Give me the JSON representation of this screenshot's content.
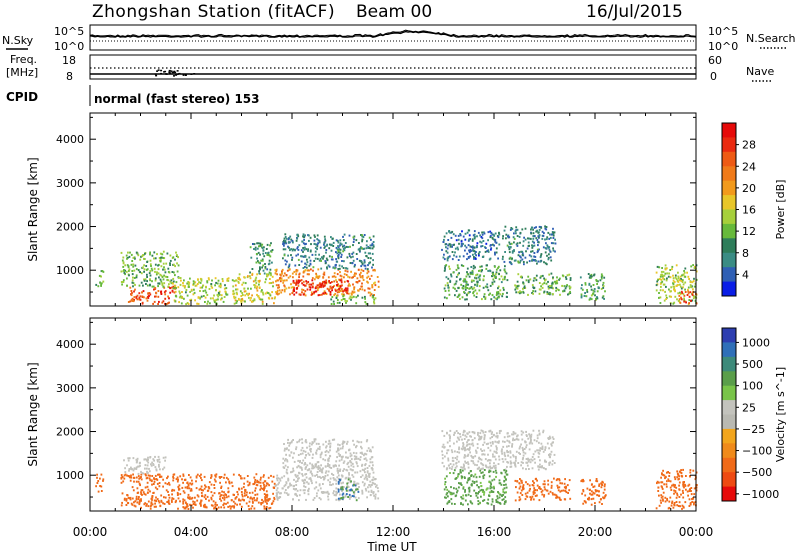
{
  "header": {
    "station": "Zhongshan Station (fitACF)",
    "beam": "Beam 00",
    "date": "16/Jul/2015",
    "mode": "normal (fast stereo) 153"
  },
  "panel_labels": {
    "nsky": "N.Sky",
    "nsearch": "N.Search",
    "freq_line1": "Freq.",
    "freq_line2": "[MHz]",
    "cpid": "CPID",
    "nave": "Nave"
  },
  "noise_axis": {
    "left_top": "10^5",
    "left_bottom": "10^0",
    "right_top": "10^5",
    "right_bottom": "10^0"
  },
  "freq_axis": {
    "left_ticks": [
      "18",
      "8"
    ],
    "right_ticks": [
      "60",
      "0"
    ]
  },
  "colors": {
    "power_scale": [
      "#0a1ee6",
      "#2f5fb4",
      "#3a8c84",
      "#2e7d5a",
      "#67b93b",
      "#a6cf3b",
      "#e8c629",
      "#f29a1c",
      "#f07a19",
      "#ee5a14",
      "#ea2a10",
      "#e60a0a"
    ],
    "velocity_scale": [
      "#2d3eb0",
      "#2f6fb8",
      "#3d8a7a",
      "#5a9e4a",
      "#79c449",
      "#c3c3bd",
      "#b9b9b2",
      "#f2a51c",
      "#ef8a1a",
      "#f06a18",
      "#ee4a12",
      "#e60a0a"
    ]
  },
  "chart_data": [
    {
      "type": "heatmap",
      "title": "",
      "xlabel": "Time UT",
      "ylabel": "Slant Range [km]",
      "xlim": [
        "00:00",
        "24:00"
      ],
      "ylim": [
        180,
        4600
      ],
      "x_ticks": [
        "00:00",
        "04:00",
        "08:00",
        "12:00",
        "16:00",
        "20:00",
        "00:00"
      ],
      "y_ticks": [
        "1000",
        "2000",
        "3000",
        "4000"
      ],
      "colorbar": {
        "label": "Power [dB]",
        "range": [
          0,
          32
        ],
        "ticks": [
          "4",
          "8",
          "12",
          "16",
          "20",
          "24",
          "28"
        ]
      },
      "patches": [
        {
          "t0": 0.2,
          "t1": 0.5,
          "r0": 600,
          "r1": 1000,
          "v": 10
        },
        {
          "t0": 1.5,
          "t1": 3.4,
          "r0": 200,
          "r1": 600,
          "v": 26
        },
        {
          "t0": 1.2,
          "t1": 3.5,
          "r0": 600,
          "r1": 1400,
          "v": 12
        },
        {
          "t0": 3.2,
          "t1": 5.5,
          "r0": 200,
          "r1": 800,
          "v": 14
        },
        {
          "t0": 5.6,
          "t1": 7.3,
          "r0": 200,
          "r1": 900,
          "v": 16
        },
        {
          "t0": 6.3,
          "t1": 7.2,
          "r0": 900,
          "r1": 1600,
          "v": 9
        },
        {
          "t0": 7.3,
          "t1": 11.4,
          "r0": 400,
          "r1": 1000,
          "v": 22
        },
        {
          "t0": 8.0,
          "t1": 10.2,
          "r0": 400,
          "r1": 750,
          "v": 29
        },
        {
          "t0": 7.6,
          "t1": 11.2,
          "r0": 1000,
          "r1": 1800,
          "v": 7
        },
        {
          "t0": 9.5,
          "t1": 11.3,
          "r0": 200,
          "r1": 400,
          "v": 12
        },
        {
          "t0": 13.9,
          "t1": 16.2,
          "r0": 1200,
          "r1": 1900,
          "v": 6
        },
        {
          "t0": 16.3,
          "t1": 18.4,
          "r0": 1100,
          "r1": 2000,
          "v": 7
        },
        {
          "t0": 14.0,
          "t1": 16.5,
          "r0": 300,
          "r1": 1100,
          "v": 11
        },
        {
          "t0": 16.8,
          "t1": 19.0,
          "r0": 400,
          "r1": 900,
          "v": 12
        },
        {
          "t0": 19.4,
          "t1": 20.4,
          "r0": 300,
          "r1": 900,
          "v": 10
        },
        {
          "t0": 22.4,
          "t1": 24.0,
          "r0": 200,
          "r1": 1100,
          "v": 14
        },
        {
          "t0": 23.3,
          "t1": 24.0,
          "r0": 200,
          "r1": 500,
          "v": 26
        }
      ]
    },
    {
      "type": "heatmap",
      "title": "",
      "xlabel": "Time UT",
      "ylabel": "Slant Range [km]",
      "xlim": [
        "00:00",
        "24:00"
      ],
      "ylim": [
        180,
        4600
      ],
      "x_ticks": [
        "00:00",
        "04:00",
        "08:00",
        "12:00",
        "16:00",
        "20:00",
        "00:00"
      ],
      "y_ticks": [
        "1000",
        "2000",
        "3000",
        "4000"
      ],
      "colorbar": {
        "label": "Velocity [m s^-1]",
        "ticks": [
          "1000",
          "500",
          "100",
          "25",
          "−25",
          "−100",
          "−500",
          "−1000"
        ]
      },
      "patches": [
        {
          "t0": 0.2,
          "t1": 0.5,
          "r0": 600,
          "r1": 1000,
          "v": -300
        },
        {
          "t0": 1.2,
          "t1": 7.3,
          "r0": 200,
          "r1": 1000,
          "v": -300
        },
        {
          "t0": 1.3,
          "t1": 3.0,
          "r0": 1000,
          "r1": 1400,
          "v": 10
        },
        {
          "t0": 7.3,
          "t1": 11.4,
          "r0": 400,
          "r1": 1000,
          "v": 10
        },
        {
          "t0": 7.6,
          "t1": 11.2,
          "r0": 1000,
          "r1": 1800,
          "v": 10
        },
        {
          "t0": 9.8,
          "t1": 10.6,
          "r0": 400,
          "r1": 900,
          "v": 600
        },
        {
          "t0": 13.9,
          "t1": 18.4,
          "r0": 1100,
          "r1": 2000,
          "v": 10
        },
        {
          "t0": 14.0,
          "t1": 16.5,
          "r0": 300,
          "r1": 1100,
          "v": 150
        },
        {
          "t0": 16.8,
          "t1": 19.0,
          "r0": 400,
          "r1": 900,
          "v": -200
        },
        {
          "t0": 19.4,
          "t1": 20.4,
          "r0": 300,
          "r1": 900,
          "v": -300
        },
        {
          "t0": 22.4,
          "t1": 24.0,
          "r0": 200,
          "r1": 1100,
          "v": -300
        }
      ]
    }
  ]
}
